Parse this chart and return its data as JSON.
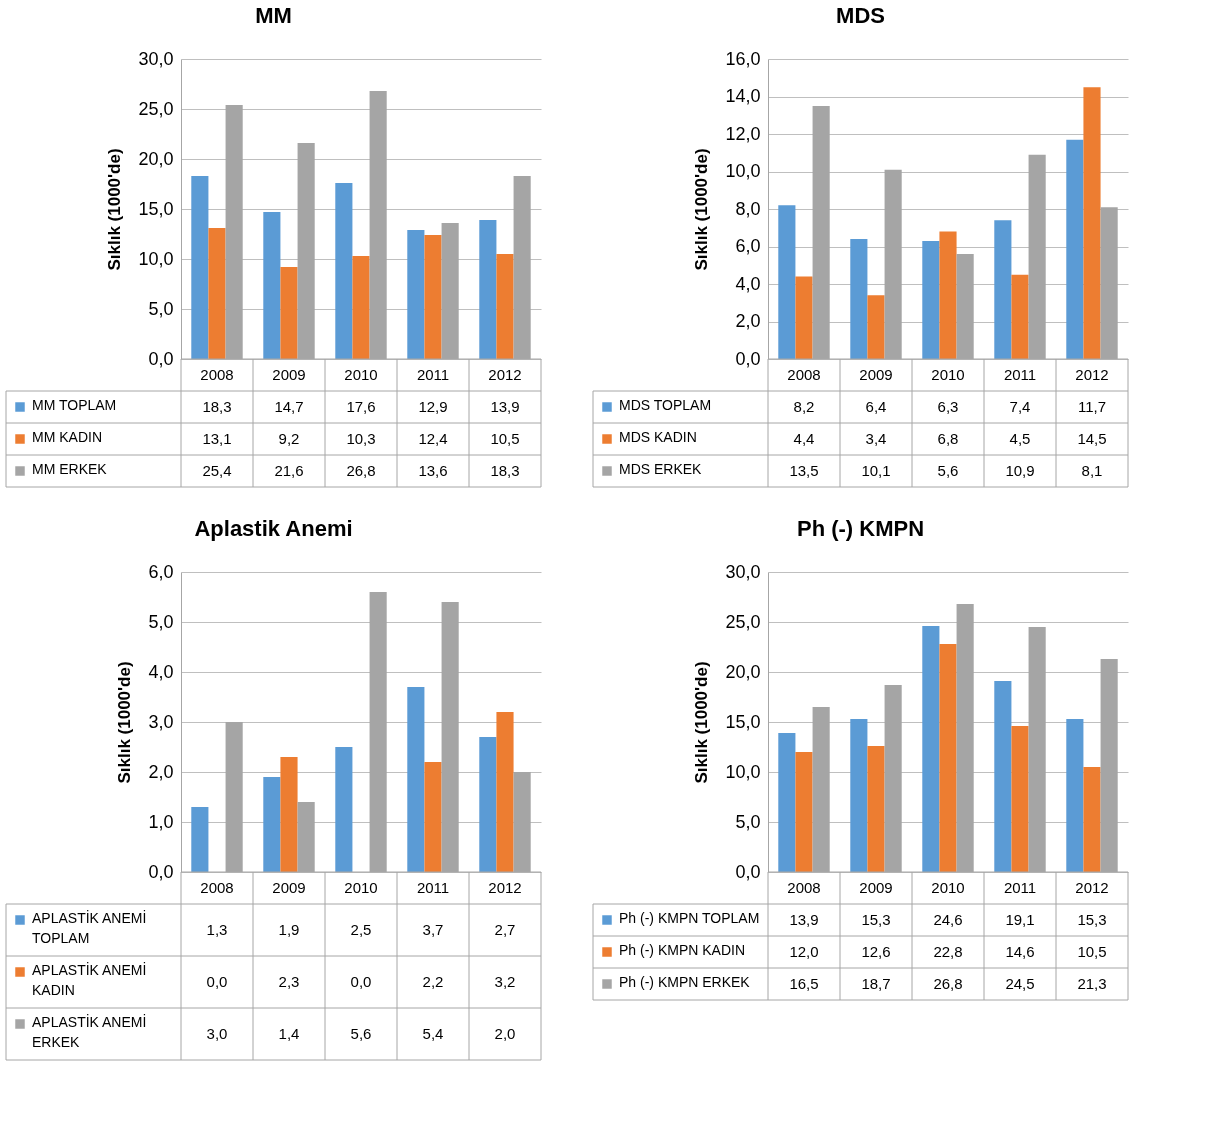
{
  "chart_data": [
    {
      "type": "bar",
      "title": "MM",
      "ylabel": "Sıklık (1000'de)",
      "categories": [
        "2008",
        "2009",
        "2010",
        "2011",
        "2012"
      ],
      "series": [
        {
          "name": "MM TOPLAM",
          "color": "#5b9bd5",
          "values": [
            18.3,
            14.7,
            17.6,
            12.9,
            13.9
          ],
          "value_labels": [
            "18,3",
            "14,7",
            "17,6",
            "12,9",
            "13,9"
          ]
        },
        {
          "name": "MM KADIN",
          "color": "#ed7d31",
          "values": [
            13.1,
            9.2,
            10.3,
            12.4,
            10.5
          ],
          "value_labels": [
            "13,1",
            "9,2",
            "10,3",
            "12,4",
            "10,5"
          ]
        },
        {
          "name": "MM ERKEK",
          "color": "#a5a5a5",
          "values": [
            25.4,
            21.6,
            26.8,
            13.6,
            18.3
          ],
          "value_labels": [
            "25,4",
            "21,6",
            "26,8",
            "13,6",
            "18,3"
          ]
        }
      ],
      "ylim": [
        0,
        30
      ],
      "yticks": [
        {
          "value": 0,
          "label": "0,0"
        },
        {
          "value": 5,
          "label": "5,0"
        },
        {
          "value": 10,
          "label": "10,0"
        },
        {
          "value": 15,
          "label": "15,0"
        },
        {
          "value": 20,
          "label": "20,0"
        },
        {
          "value": 25,
          "label": "25,0"
        },
        {
          "value": 30,
          "label": "30,0"
        }
      ],
      "grid": "y",
      "legend": "bottom"
    },
    {
      "type": "bar",
      "title": "MDS",
      "ylabel": "Sıklık (1000'de)",
      "categories": [
        "2008",
        "2009",
        "2010",
        "2011",
        "2012"
      ],
      "series": [
        {
          "name": "MDS TOPLAM",
          "color": "#5b9bd5",
          "values": [
            8.2,
            6.4,
            6.3,
            7.4,
            11.7
          ],
          "value_labels": [
            "8,2",
            "6,4",
            "6,3",
            "7,4",
            "11,7"
          ]
        },
        {
          "name": "MDS KADIN",
          "color": "#ed7d31",
          "values": [
            4.4,
            3.4,
            6.8,
            4.5,
            14.5
          ],
          "value_labels": [
            "4,4",
            "3,4",
            "6,8",
            "4,5",
            "14,5"
          ]
        },
        {
          "name": "MDS ERKEK",
          "color": "#a5a5a5",
          "values": [
            13.5,
            10.1,
            5.6,
            10.9,
            8.1
          ],
          "value_labels": [
            "13,5",
            "10,1",
            "5,6",
            "10,9",
            "8,1"
          ]
        }
      ],
      "ylim": [
        0,
        16
      ],
      "yticks": [
        {
          "value": 0,
          "label": "0,0"
        },
        {
          "value": 2,
          "label": "2,0"
        },
        {
          "value": 4,
          "label": "4,0"
        },
        {
          "value": 6,
          "label": "6,0"
        },
        {
          "value": 8,
          "label": "8,0"
        },
        {
          "value": 10,
          "label": "10,0"
        },
        {
          "value": 12,
          "label": "12,0"
        },
        {
          "value": 14,
          "label": "14,0"
        },
        {
          "value": 16,
          "label": "16,0"
        }
      ],
      "grid": "y",
      "legend": "bottom"
    },
    {
      "type": "bar",
      "title": "Aplastik Anemi",
      "ylabel": "Sıklık (1000'de)",
      "categories": [
        "2008",
        "2009",
        "2010",
        "2011",
        "2012"
      ],
      "series": [
        {
          "name": "APLASTİK ANEMİ TOPLAM",
          "color": "#5b9bd5",
          "values": [
            1.3,
            1.9,
            2.5,
            3.7,
            2.7
          ],
          "value_labels": [
            "1,3",
            "1,9",
            "2,5",
            "3,7",
            "2,7"
          ]
        },
        {
          "name": "APLASTİK ANEMİ KADIN",
          "color": "#ed7d31",
          "values": [
            0.0,
            2.3,
            0.0,
            2.2,
            3.2
          ],
          "value_labels": [
            "0,0",
            "2,3",
            "0,0",
            "2,2",
            "3,2"
          ]
        },
        {
          "name": "APLASTİK ANEMİ ERKEK",
          "color": "#a5a5a5",
          "values": [
            3.0,
            1.4,
            5.6,
            5.4,
            2.0
          ],
          "value_labels": [
            "3,0",
            "1,4",
            "5,6",
            "5,4",
            "2,0"
          ]
        }
      ],
      "ylim": [
        0,
        6
      ],
      "yticks": [
        {
          "value": 0,
          "label": "0,0"
        },
        {
          "value": 1,
          "label": "1,0"
        },
        {
          "value": 2,
          "label": "2,0"
        },
        {
          "value": 3,
          "label": "3,0"
        },
        {
          "value": 4,
          "label": "4,0"
        },
        {
          "value": 5,
          "label": "5,0"
        },
        {
          "value": 6,
          "label": "6,0"
        }
      ],
      "grid": "y",
      "legend": "bottom"
    },
    {
      "type": "bar",
      "title": "Ph (-) KMPN",
      "ylabel": "Sıklık (1000'de)",
      "categories": [
        "2008",
        "2009",
        "2010",
        "2011",
        "2012"
      ],
      "series": [
        {
          "name": "Ph (-) KMPN TOPLAM",
          "color": "#5b9bd5",
          "values": [
            13.9,
            15.3,
            24.6,
            19.1,
            15.3
          ],
          "value_labels": [
            "13,9",
            "15,3",
            "24,6",
            "19,1",
            "15,3"
          ]
        },
        {
          "name": "Ph (-) KMPN KADIN",
          "color": "#ed7d31",
          "values": [
            12.0,
            12.6,
            22.8,
            14.6,
            10.5
          ],
          "value_labels": [
            "12,0",
            "12,6",
            "22,8",
            "14,6",
            "10,5"
          ]
        },
        {
          "name": "Ph (-) KMPN ERKEK",
          "color": "#a5a5a5",
          "values": [
            16.5,
            18.7,
            26.8,
            24.5,
            21.3
          ],
          "value_labels": [
            "16,5",
            "18,7",
            "26,8",
            "24,5",
            "21,3"
          ]
        }
      ],
      "ylim": [
        0,
        30
      ],
      "yticks": [
        {
          "value": 0,
          "label": "0,0"
        },
        {
          "value": 5,
          "label": "5,0"
        },
        {
          "value": 10,
          "label": "10,0"
        },
        {
          "value": 15,
          "label": "15,0"
        },
        {
          "value": 20,
          "label": "20,0"
        },
        {
          "value": 25,
          "label": "25,0"
        },
        {
          "value": 30,
          "label": "30,0"
        }
      ],
      "grid": "y",
      "legend": "bottom"
    }
  ]
}
